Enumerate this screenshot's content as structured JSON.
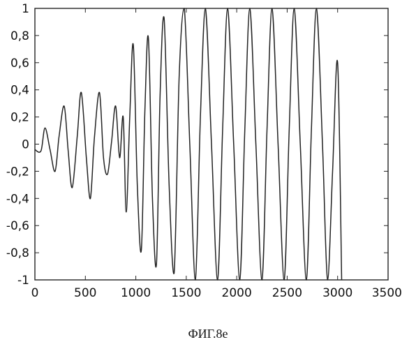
{
  "chart_data": {
    "type": "line",
    "title": "",
    "xlabel": "",
    "ylabel": "",
    "xlim": [
      0,
      3500
    ],
    "ylim": [
      -1,
      1
    ],
    "grid": false,
    "legend": "none",
    "x_ticks": [
      0,
      500,
      1000,
      1500,
      2000,
      2500,
      3000,
      3500
    ],
    "x_tick_labels": [
      "0",
      "500",
      "1000",
      "1500",
      "2000",
      "2500",
      "3000",
      "3500"
    ],
    "y_ticks": [
      1,
      0.8,
      0.6,
      0.4,
      0.2,
      0,
      -0.2,
      -0.4,
      -0.6,
      -0.8,
      -1
    ],
    "y_tick_labels": [
      "1",
      "0,8",
      "0,6",
      "0,4",
      "0,2",
      "0",
      "-0,2",
      "-0,4",
      "-0,6",
      "-0,8",
      "-1"
    ],
    "series": [
      {
        "line_color": "#222222",
        "x": [
          0,
          60,
          100,
          150,
          200,
          240,
          290,
          330,
          370,
          420,
          460,
          510,
          550,
          590,
          640,
          680,
          720,
          760,
          800,
          840,
          875,
          905,
          940,
          975,
          1015,
          1055,
          1090,
          1125,
          1165,
          1205,
          1240,
          1280,
          1330,
          1380,
          1430,
          1480,
          1535,
          1590,
          1640,
          1690,
          1750,
          1810,
          1860,
          1910,
          1970,
          2030,
          2080,
          2130,
          2190,
          2250,
          2300,
          2350,
          2410,
          2470,
          2520,
          2570,
          2630,
          2690,
          2740,
          2790,
          2850,
          2900,
          2950,
          3000,
          3040
        ],
        "y": [
          -0.04,
          -0.05,
          0.12,
          -0.04,
          -0.2,
          0.06,
          0.28,
          -0.05,
          -0.32,
          0.06,
          0.38,
          -0.1,
          -0.4,
          0.05,
          0.38,
          -0.1,
          -0.22,
          0.02,
          0.28,
          -0.1,
          0.2,
          -0.5,
          0.2,
          0.73,
          -0.3,
          -0.78,
          0.25,
          0.78,
          -0.4,
          -0.88,
          0.35,
          0.93,
          -0.3,
          -0.95,
          0.5,
          1,
          0,
          -1,
          0.2,
          1,
          0,
          -1,
          0.1,
          1,
          0,
          -1,
          0.1,
          1,
          0,
          -1,
          0.1,
          1,
          0,
          -1,
          0.1,
          1,
          0,
          -1,
          0.1,
          1,
          0,
          -1,
          -0.2,
          0.6,
          -1
        ]
      }
    ]
  },
  "caption": "ФИГ.8е"
}
